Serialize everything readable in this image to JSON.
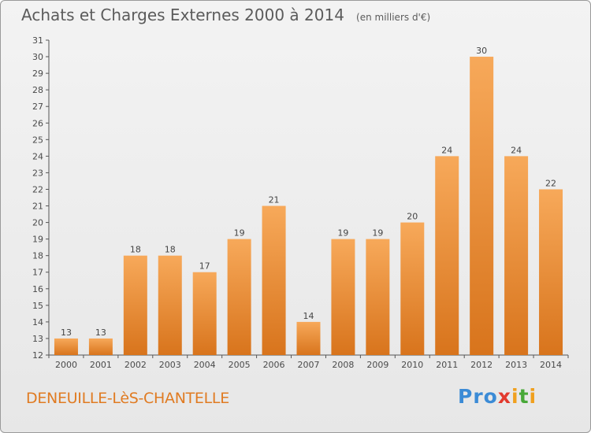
{
  "header": {
    "title": "Achats et Charges Externes 2000 à 2014",
    "subtitle": "(en milliers d'€)"
  },
  "footer": {
    "commune": "DENEUILLE-LèS-CHANTELLE",
    "logo": [
      "P",
      "r",
      "o",
      "x",
      "i",
      "t",
      "i"
    ]
  },
  "colors": {
    "bar_light": "#f7a95a",
    "bar_dark": "#d8741c",
    "commune": "#e07b22",
    "logo": [
      "#3b8bd6",
      "#3b8bd6",
      "#3b8bd6",
      "#e23a2e",
      "#f0a01e",
      "#48a838",
      "#f0a01e"
    ]
  },
  "chart_data": {
    "type": "bar",
    "categories": [
      "2000",
      "2001",
      "2002",
      "2003",
      "2004",
      "2005",
      "2006",
      "2007",
      "2008",
      "2009",
      "2010",
      "2011",
      "2012",
      "2013",
      "2014"
    ],
    "values": [
      13,
      13,
      18,
      18,
      17,
      19,
      21,
      14,
      19,
      19,
      20,
      24,
      30,
      24,
      22
    ],
    "title": "Achats et Charges Externes 2000 à 2014",
    "xlabel": "",
    "ylabel": "",
    "ylim": [
      12,
      31
    ],
    "yticks": [
      12,
      13,
      14,
      15,
      16,
      17,
      18,
      19,
      20,
      21,
      22,
      23,
      24,
      25,
      26,
      27,
      28,
      29,
      30,
      31
    ],
    "grid": false,
    "legend": "none"
  }
}
